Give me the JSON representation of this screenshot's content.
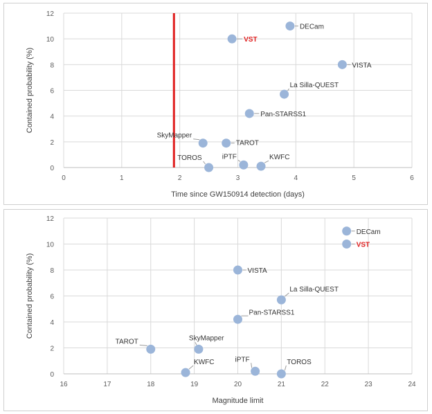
{
  "chart_data": [
    {
      "type": "scatter",
      "xlabel": "Time since GW150914 detection (days)",
      "ylabel": "Contained probability (%)",
      "xlim": [
        0,
        6
      ],
      "ylim": [
        0,
        12
      ],
      "xticks": [
        0,
        1,
        2,
        3,
        4,
        5,
        6
      ],
      "yticks": [
        0,
        2,
        4,
        6,
        8,
        10,
        12
      ],
      "grid": true,
      "marker_color": "#9bb5d9",
      "highlight_color": "#e02020",
      "reference_line": {
        "x": 1.9,
        "color": "#e02020"
      },
      "points": [
        {
          "label": "DECam",
          "x": 3.9,
          "y": 11.0
        },
        {
          "label": "VST",
          "x": 2.9,
          "y": 10.0,
          "highlight": true
        },
        {
          "label": "VISTA",
          "x": 4.8,
          "y": 8.0
        },
        {
          "label": "La Silla-QUEST",
          "x": 3.8,
          "y": 5.7
        },
        {
          "label": "Pan-STARSS1",
          "x": 3.2,
          "y": 4.2
        },
        {
          "label": "SkyMapper",
          "x": 2.4,
          "y": 1.9
        },
        {
          "label": "TAROT",
          "x": 2.8,
          "y": 1.9
        },
        {
          "label": "TOROS",
          "x": 2.5,
          "y": 0.0
        },
        {
          "label": "iPTF",
          "x": 3.1,
          "y": 0.2
        },
        {
          "label": "KWFC",
          "x": 3.4,
          "y": 0.1
        }
      ]
    },
    {
      "type": "scatter",
      "xlabel": "Magnitude limit",
      "ylabel": "Contained probability (%)",
      "xlim": [
        16,
        24
      ],
      "ylim": [
        0,
        12
      ],
      "xticks": [
        16,
        17,
        18,
        19,
        20,
        21,
        22,
        23,
        24
      ],
      "yticks": [
        0,
        2,
        4,
        6,
        8,
        10,
        12
      ],
      "grid": true,
      "marker_color": "#9bb5d9",
      "highlight_color": "#e02020",
      "points": [
        {
          "label": "DECam",
          "x": 22.5,
          "y": 11.0
        },
        {
          "label": "VST",
          "x": 22.5,
          "y": 10.0,
          "highlight": true
        },
        {
          "label": "VISTA",
          "x": 20.0,
          "y": 8.0
        },
        {
          "label": "La Silla-QUEST",
          "x": 21.0,
          "y": 5.7
        },
        {
          "label": "Pan-STARSS1",
          "x": 20.0,
          "y": 4.2
        },
        {
          "label": "TAROT",
          "x": 18.0,
          "y": 1.9
        },
        {
          "label": "SkyMapper",
          "x": 19.1,
          "y": 1.9
        },
        {
          "label": "KWFC",
          "x": 18.8,
          "y": 0.1
        },
        {
          "label": "iPTF",
          "x": 20.4,
          "y": 0.2
        },
        {
          "label": "TOROS",
          "x": 21.0,
          "y": 0.0
        }
      ]
    }
  ]
}
